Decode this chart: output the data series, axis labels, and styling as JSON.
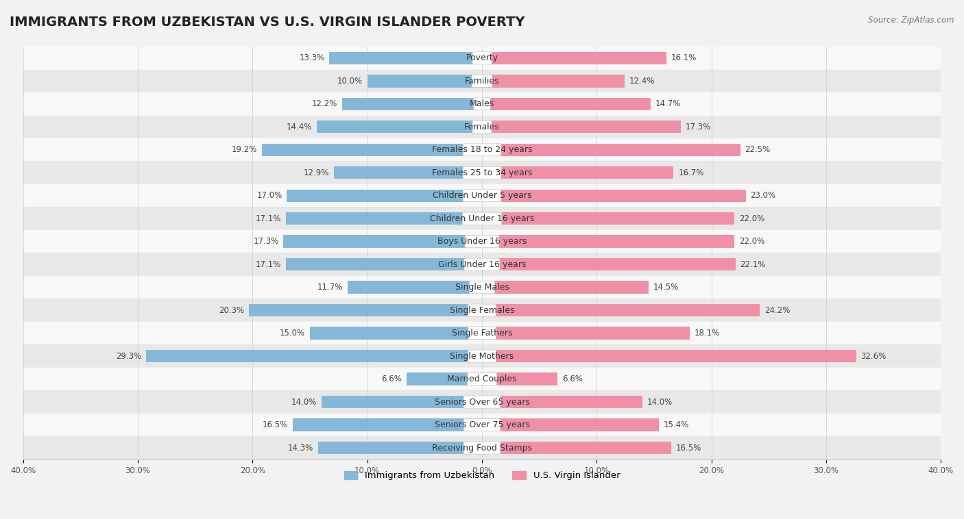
{
  "title": "IMMIGRANTS FROM UZBEKISTAN VS U.S. VIRGIN ISLANDER POVERTY",
  "source": "Source: ZipAtlas.com",
  "categories": [
    "Poverty",
    "Families",
    "Males",
    "Females",
    "Females 18 to 24 years",
    "Females 25 to 34 years",
    "Children Under 5 years",
    "Children Under 16 years",
    "Boys Under 16 years",
    "Girls Under 16 years",
    "Single Males",
    "Single Females",
    "Single Fathers",
    "Single Mothers",
    "Married Couples",
    "Seniors Over 65 years",
    "Seniors Over 75 years",
    "Receiving Food Stamps"
  ],
  "uzbekistan_values": [
    13.3,
    10.0,
    12.2,
    14.4,
    19.2,
    12.9,
    17.0,
    17.1,
    17.3,
    17.1,
    11.7,
    20.3,
    15.0,
    29.3,
    6.6,
    14.0,
    16.5,
    14.3
  ],
  "virgin_islander_values": [
    16.1,
    12.4,
    14.7,
    17.3,
    22.5,
    16.7,
    23.0,
    22.0,
    22.0,
    22.1,
    14.5,
    24.2,
    18.1,
    32.6,
    6.6,
    14.0,
    15.4,
    16.5
  ],
  "uzbekistan_color": "#85b8d8",
  "virgin_islander_color": "#f090a8",
  "uzbekistan_label": "Immigrants from Uzbekistan",
  "virgin_islander_label": "U.S. Virgin Islander",
  "background_color": "#f2f2f2",
  "row_color_light": "#f8f8f8",
  "row_color_dark": "#e8e8e8",
  "axis_limit": 40.0,
  "title_fontsize": 14,
  "label_fontsize": 9,
  "value_fontsize": 8.5
}
